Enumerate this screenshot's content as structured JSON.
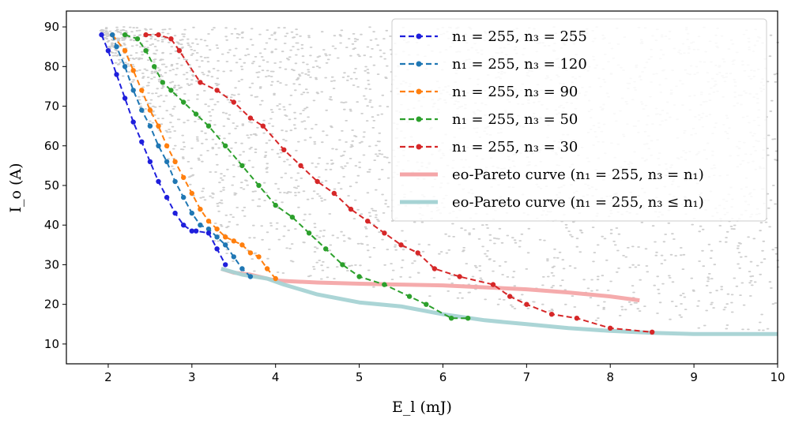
{
  "chart_data": {
    "type": "line",
    "xlabel": "E_l (mJ)",
    "ylabel": "I_o (A)",
    "xlim": [
      1.5,
      10
    ],
    "ylim": [
      5,
      94
    ],
    "xticks": [
      2,
      3,
      4,
      5,
      6,
      7,
      8,
      9,
      10
    ],
    "yticks": [
      10,
      20,
      30,
      40,
      50,
      60,
      70,
      80,
      90
    ],
    "grid": false,
    "legend_position": "top-right",
    "background_scatter": {
      "color": "#bdbdbd",
      "x_range": [
        1.9,
        10
      ],
      "y_range": [
        12,
        90
      ]
    },
    "series": [
      {
        "name": "n1=255, n3=255",
        "color": "#1f1fdc",
        "style": "dashed-dot",
        "x": [
          1.92,
          2.0,
          2.1,
          2.2,
          2.3,
          2.4,
          2.5,
          2.6,
          2.7,
          2.8,
          2.9,
          3.0,
          3.05,
          3.2,
          3.3,
          3.4
        ],
        "y": [
          88,
          84,
          78,
          72,
          66,
          61,
          56,
          51,
          47,
          43,
          40,
          38.5,
          38.5,
          38,
          34,
          30
        ]
      },
      {
        "name": "n1=255, n3=120",
        "color": "#1f77b4",
        "style": "dashed-dot",
        "x": [
          2.05,
          2.1,
          2.2,
          2.3,
          2.4,
          2.5,
          2.6,
          2.7,
          2.8,
          2.9,
          3.0,
          3.1,
          3.2,
          3.3,
          3.4,
          3.5,
          3.6,
          3.7
        ],
        "y": [
          88,
          85,
          80,
          74,
          69,
          65,
          60,
          56,
          51,
          47,
          43,
          40,
          39,
          37,
          35,
          32,
          29,
          27
        ]
      },
      {
        "name": "n1=255, n3=90",
        "color": "#ff7f0e",
        "style": "dashed-dot",
        "x": [
          2.05,
          2.2,
          2.3,
          2.4,
          2.5,
          2.6,
          2.7,
          2.8,
          2.9,
          3.0,
          3.1,
          3.2,
          3.3,
          3.4,
          3.5,
          3.6,
          3.7,
          3.8,
          3.9,
          4.0
        ],
        "y": [
          88,
          84,
          79,
          74,
          69,
          65,
          60,
          56,
          52,
          48,
          44,
          41,
          39,
          37,
          36,
          35,
          33,
          32,
          29,
          26.5
        ]
      },
      {
        "name": "n1=255, n3=50",
        "color": "#2ca02c",
        "style": "dashed-dot",
        "x": [
          2.2,
          2.35,
          2.45,
          2.55,
          2.65,
          2.75,
          2.9,
          3.05,
          3.2,
          3.4,
          3.6,
          3.8,
          4.0,
          4.2,
          4.4,
          4.6,
          4.8,
          5.0,
          5.3,
          5.6,
          5.8,
          6.1,
          6.3
        ],
        "y": [
          88,
          87,
          84,
          80,
          76,
          74,
          71,
          68,
          65,
          60,
          55,
          50,
          45,
          42,
          38,
          34,
          30,
          27,
          25,
          22,
          20,
          16.5,
          16.5
        ]
      },
      {
        "name": "n1=255, n3=30",
        "color": "#d62728",
        "style": "dashed-dot",
        "x": [
          2.45,
          2.6,
          2.75,
          2.85,
          3.1,
          3.3,
          3.5,
          3.7,
          3.85,
          4.1,
          4.3,
          4.5,
          4.7,
          4.9,
          5.1,
          5.3,
          5.5,
          5.7,
          5.9,
          6.2,
          6.6,
          6.8,
          7.0,
          7.3,
          7.6,
          8.0,
          8.5
        ],
        "y": [
          88,
          88,
          87,
          84,
          76,
          74,
          71,
          67,
          65,
          59,
          55,
          51,
          48,
          44,
          41,
          38,
          35,
          33,
          29,
          27,
          25,
          22,
          20,
          17.5,
          16.5,
          14,
          13
        ]
      },
      {
        "name": "eo-Pareto curve (n1=255, n3=n1)",
        "color": "#f4a6a8",
        "style": "thick",
        "x": [
          3.35,
          3.5,
          3.7,
          3.8,
          3.9,
          4.0,
          4.5,
          5.0,
          5.5,
          6.0,
          6.5,
          7.0,
          7.5,
          8.0,
          8.35
        ],
        "y": [
          29,
          28,
          27.5,
          27,
          26.5,
          26,
          25.5,
          25.2,
          25,
          24.8,
          24.3,
          23.8,
          23,
          22,
          21
        ]
      },
      {
        "name": "eo-Pareto curve (n1=255, n3≤n1)",
        "color": "#a6d3d4",
        "style": "thick",
        "x": [
          3.35,
          3.6,
          3.9,
          4.1,
          4.5,
          5.0,
          5.5,
          6.0,
          6.5,
          7.0,
          7.5,
          8.0,
          8.5,
          9.0,
          10.0
        ],
        "y": [
          29,
          27.5,
          26.5,
          25,
          22.5,
          20.5,
          19.5,
          17.5,
          16,
          15,
          14,
          13.3,
          12.8,
          12.5,
          12.5
        ]
      }
    ]
  },
  "legend_entries": [
    {
      "text": "n₁ = 255, n₃ = 255"
    },
    {
      "text": "n₁ = 255, n₃ = 120"
    },
    {
      "text": "n₁ = 255, n₃ = 90"
    },
    {
      "text": "n₁ = 255, n₃ = 50"
    },
    {
      "text": "n₁ = 255, n₃ = 30"
    },
    {
      "text": "eo-Pareto curve (n₁ = 255, n₃ = n₁)"
    },
    {
      "text": "eo-Pareto curve (n₁ = 255, n₃ ≤ n₁)"
    }
  ]
}
